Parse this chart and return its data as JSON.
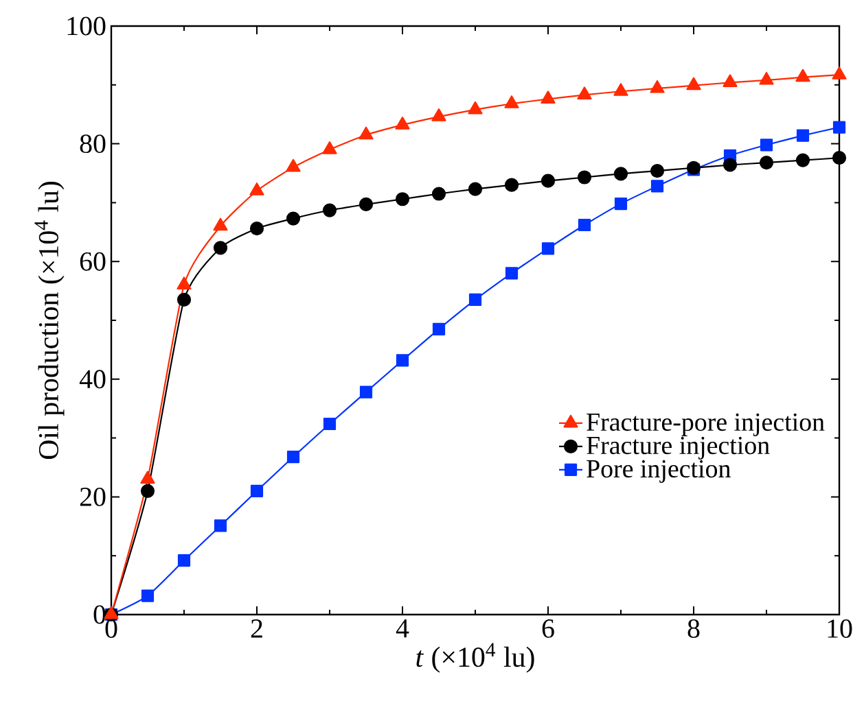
{
  "chart_data": {
    "type": "line",
    "xlabel": "*t* (×10$^{4}$ lu)",
    "ylabel": "Oil production (×10$^{4}$ lu)",
    "x": [
      0,
      0.5,
      1,
      1.5,
      2,
      2.5,
      3,
      3.5,
      4,
      4.5,
      5,
      5.5,
      6,
      6.5,
      7,
      7.5,
      8,
      8.5,
      9,
      9.5,
      10
    ],
    "series": [
      {
        "name": "Fracture-pore injection",
        "color": "#ff2a00",
        "marker": "triangle",
        "values": [
          0,
          23,
          56,
          66,
          72,
          76,
          79,
          81.5,
          83.2,
          84.6,
          85.8,
          86.8,
          87.6,
          88.3,
          88.9,
          89.4,
          89.9,
          90.4,
          90.8,
          91.3,
          91.7
        ]
      },
      {
        "name": "Fracture injection",
        "color": "#000000",
        "marker": "circle",
        "values": [
          0,
          21,
          53.5,
          62.3,
          65.6,
          67.3,
          68.7,
          69.7,
          70.6,
          71.5,
          72.3,
          73.0,
          73.7,
          74.3,
          74.9,
          75.4,
          75.9,
          76.4,
          76.8,
          77.2,
          77.6
        ]
      },
      {
        "name": "Pore injection",
        "color": "#0033ff",
        "marker": "square",
        "values": [
          0,
          3.2,
          9.2,
          15.1,
          21,
          26.8,
          32.4,
          37.8,
          43.2,
          48.5,
          53.5,
          58,
          62.2,
          66.2,
          69.8,
          72.8,
          75.6,
          78,
          79.8,
          81.4,
          82.8
        ]
      }
    ],
    "xlim": [
      0,
      10
    ],
    "ylim": [
      0,
      100
    ],
    "xticks": [
      0,
      2,
      4,
      6,
      8,
      10
    ],
    "yticks": [
      0,
      20,
      40,
      60,
      80,
      100
    ],
    "legend": "bottom right",
    "grid": false,
    "line_style": "solid"
  }
}
